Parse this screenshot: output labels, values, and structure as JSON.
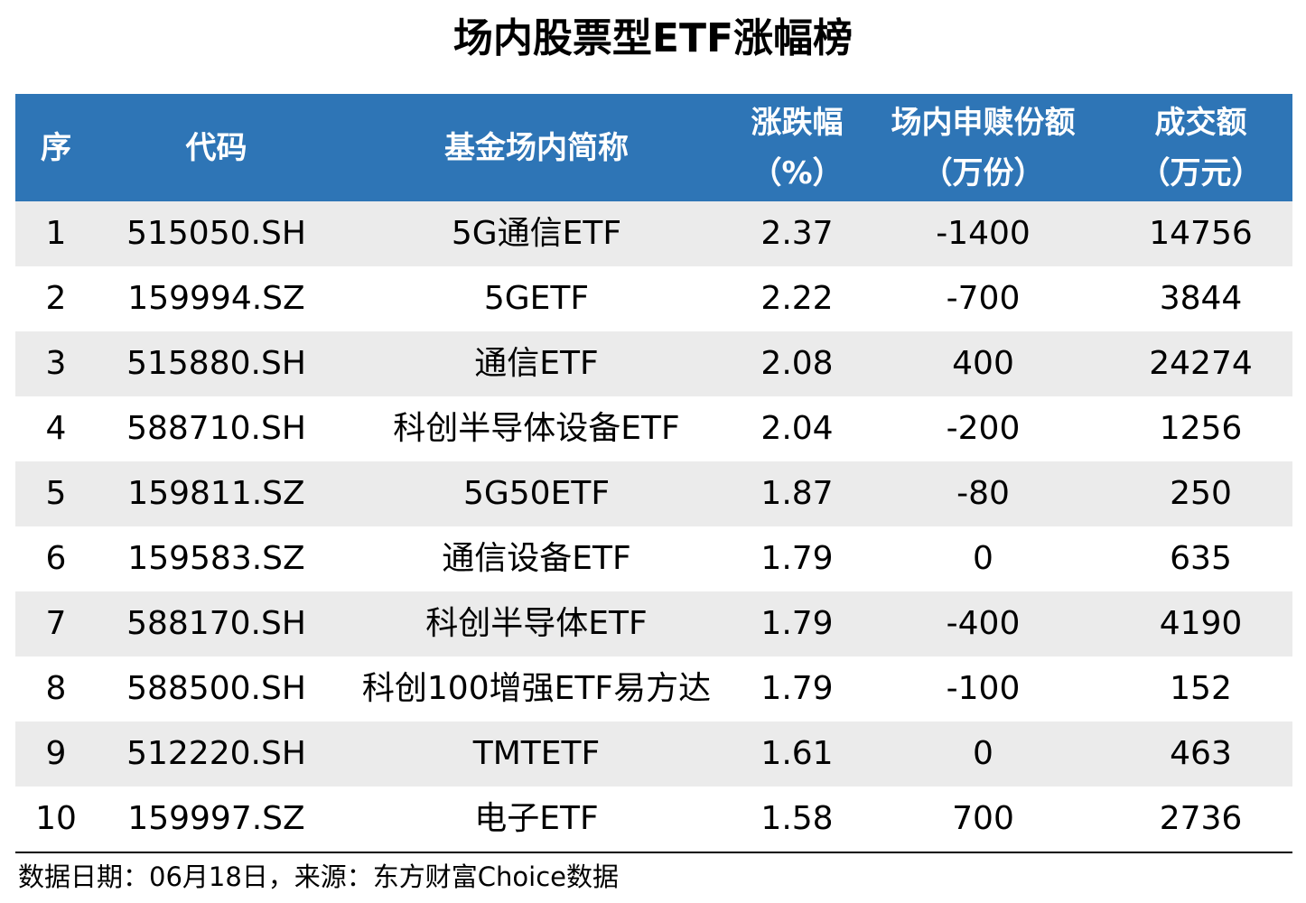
{
  "title": "场内股票型ETF涨幅榜",
  "headers": {
    "rank": [
      "序"
    ],
    "code": [
      "代码"
    ],
    "name": [
      "基金场内简称"
    ],
    "change": [
      "涨跌幅",
      "（%）"
    ],
    "shares": [
      "场内申赎份额",
      "（万份）"
    ],
    "turnover": [
      "成交额",
      "（万元）"
    ]
  },
  "colors": {
    "header_bg": "#2E75B6",
    "header_text": "#FFFFFF",
    "row_shade": "#EBEBEB"
  },
  "chart_data": {
    "type": "table",
    "title": "场内股票型ETF涨幅榜",
    "columns": [
      "序",
      "代码",
      "基金场内简称",
      "涨跌幅（%）",
      "场内申赎份额（万份）",
      "成交额（万元）"
    ],
    "rows": [
      {
        "rank": "1",
        "code": "515050.SH",
        "name": "5G通信ETF",
        "change": "2.37",
        "shares": "-1400",
        "turnover": "14756"
      },
      {
        "rank": "2",
        "code": "159994.SZ",
        "name": "5GETF",
        "change": "2.22",
        "shares": "-700",
        "turnover": "3844"
      },
      {
        "rank": "3",
        "code": "515880.SH",
        "name": "通信ETF",
        "change": "2.08",
        "shares": "400",
        "turnover": "24274"
      },
      {
        "rank": "4",
        "code": "588710.SH",
        "name": "科创半导体设备ETF",
        "change": "2.04",
        "shares": "-200",
        "turnover": "1256"
      },
      {
        "rank": "5",
        "code": "159811.SZ",
        "name": "5G50ETF",
        "change": "1.87",
        "shares": "-80",
        "turnover": "250"
      },
      {
        "rank": "6",
        "code": "159583.SZ",
        "name": "通信设备ETF",
        "change": "1.79",
        "shares": "0",
        "turnover": "635"
      },
      {
        "rank": "7",
        "code": "588170.SH",
        "name": "科创半导体ETF",
        "change": "1.79",
        "shares": "-400",
        "turnover": "4190"
      },
      {
        "rank": "8",
        "code": "588500.SH",
        "name": "科创100增强ETF易方达",
        "change": "1.79",
        "shares": "-100",
        "turnover": "152"
      },
      {
        "rank": "9",
        "code": "512220.SH",
        "name": "TMTETF",
        "change": "1.61",
        "shares": "0",
        "turnover": "463"
      },
      {
        "rank": "10",
        "code": "159997.SZ",
        "name": "电子ETF",
        "change": "1.58",
        "shares": "700",
        "turnover": "2736"
      }
    ]
  },
  "footer": "数据日期：06月18日，来源：东方财富Choice数据"
}
